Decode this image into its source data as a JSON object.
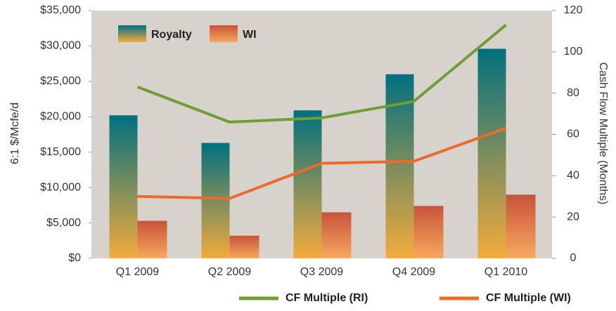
{
  "chart_data": {
    "type": "bar",
    "categories": [
      "Q1 2009",
      "Q2 2009",
      "Q3 2009",
      "Q4 2009",
      "Q1 2010"
    ],
    "y_label": "6:1 $/Mcfe/d",
    "y2_label": "Cash Flow Multiple (Months)",
    "ylim": [
      0,
      35000
    ],
    "yticks": [
      {
        "value": 0,
        "label": "$0"
      },
      {
        "value": 5000,
        "label": "$5,000"
      },
      {
        "value": 10000,
        "label": "$10,000"
      },
      {
        "value": 15000,
        "label": "$15,000"
      },
      {
        "value": 20000,
        "label": "$20,000"
      },
      {
        "value": 25000,
        "label": "$25,000"
      },
      {
        "value": 30000,
        "label": "$30,000"
      },
      {
        "value": 35000,
        "label": "$35,000"
      }
    ],
    "y2lim": [
      0,
      120
    ],
    "y2ticks": [
      0,
      20,
      40,
      60,
      80,
      100,
      120
    ],
    "background": "#d7d2cc",
    "series": [
      {
        "name": "Royalty",
        "type": "bar",
        "gradient": [
          "#00707f",
          "#f4ab3c"
        ],
        "values": [
          20200,
          16300,
          20900,
          26000,
          29600
        ]
      },
      {
        "name": "WI",
        "type": "bar",
        "gradient": [
          "#c9533a",
          "#f7a85e"
        ],
        "values": [
          5300,
          3200,
          6500,
          7400,
          9000
        ]
      },
      {
        "name": "CF Multiple (RI)",
        "type": "line",
        "axis": "y2",
        "color": "#6f9f34",
        "values": [
          83,
          66,
          68,
          76,
          113
        ]
      },
      {
        "name": "CF Multiple (WI)",
        "type": "line",
        "axis": "y2",
        "color": "#ee6a2a",
        "values": [
          30,
          29,
          46,
          47,
          63
        ]
      }
    ]
  }
}
